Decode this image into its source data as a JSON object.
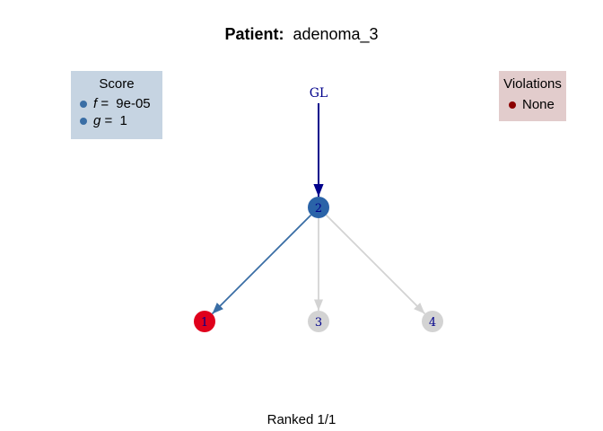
{
  "title": {
    "prefix": "Patient:",
    "name": "adenoma_3"
  },
  "footer": "Ranked 1/1",
  "score": {
    "heading": "Score",
    "items": [
      {
        "var": "f",
        "eq": " = ",
        "value": "9e-05",
        "color": "#3a6ea5"
      },
      {
        "var": "g",
        "eq": " = ",
        "value": "1",
        "color": "#3a6ea5"
      }
    ]
  },
  "violations": {
    "heading": "Violations",
    "items": [
      {
        "label": "None",
        "color": "#8b0000"
      }
    ]
  },
  "graph": {
    "nodes": [
      {
        "id": "GL",
        "label": "GL",
        "type": "text",
        "label_color": "#00008b"
      },
      {
        "id": "2",
        "label": "2",
        "type": "circle",
        "fill": "#2a63a8",
        "label_color": "#00008b"
      },
      {
        "id": "1",
        "label": "1",
        "type": "circle",
        "fill": "#e0001c",
        "label_color": "#00008b"
      },
      {
        "id": "3",
        "label": "3",
        "type": "circle",
        "fill": "#d3d3d3",
        "label_color": "#00008b"
      },
      {
        "id": "4",
        "label": "4",
        "type": "circle",
        "fill": "#d3d3d3",
        "label_color": "#00008b"
      }
    ],
    "edges": [
      {
        "from": "GL",
        "to": "2",
        "color": "#00008b"
      },
      {
        "from": "2",
        "to": "1",
        "color": "#3a6ea5"
      },
      {
        "from": "2",
        "to": "3",
        "color": "#d3d3d3"
      },
      {
        "from": "2",
        "to": "4",
        "color": "#d3d3d3"
      }
    ]
  }
}
